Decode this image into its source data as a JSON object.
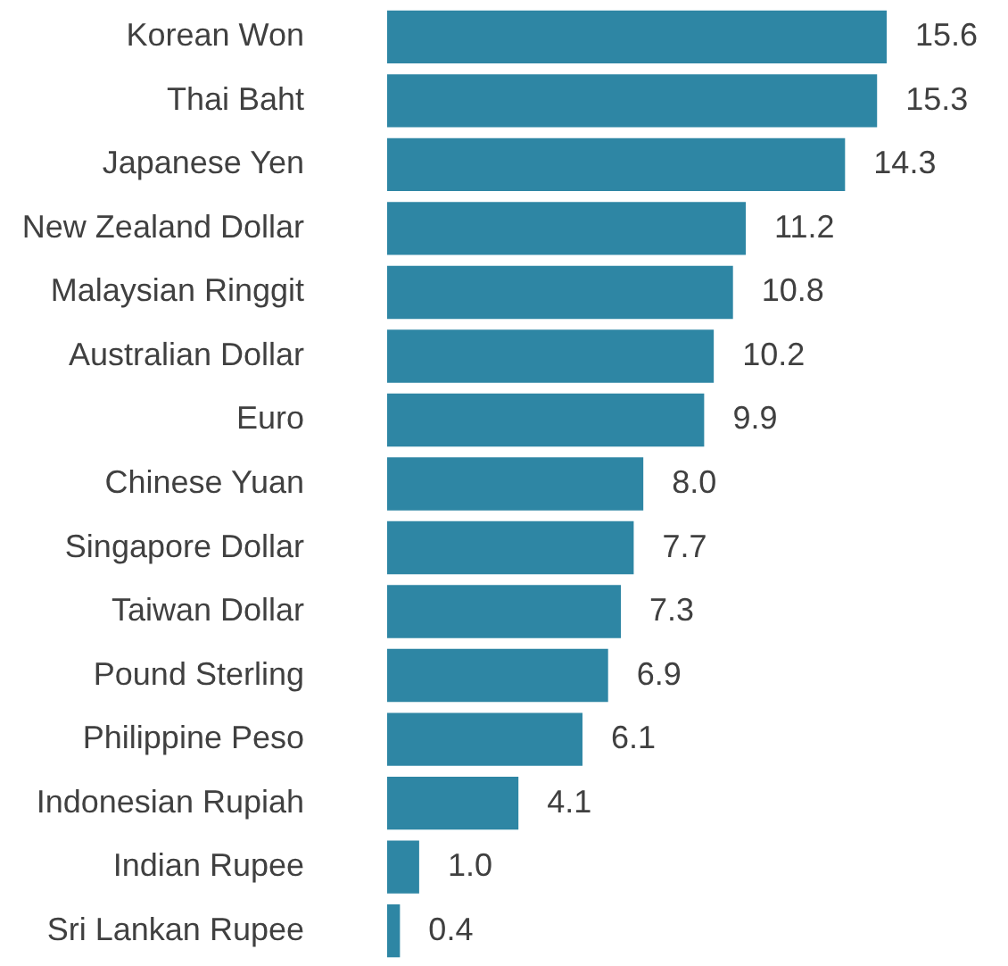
{
  "chart_data": {
    "type": "bar",
    "orientation": "horizontal",
    "categories": [
      "Korean Won",
      "Thai Baht",
      "Japanese Yen",
      "New Zealand Dollar",
      "Malaysian Ringgit",
      "Australian Dollar",
      "Euro",
      "Chinese Yuan",
      "Singapore Dollar",
      "Taiwan Dollar",
      "Pound Sterling",
      "Philippine Peso",
      "Indonesian Rupiah",
      "Indian Rupee",
      "Sri Lankan Rupee"
    ],
    "values": [
      15.6,
      15.3,
      14.3,
      11.2,
      10.8,
      10.2,
      9.9,
      8.0,
      7.7,
      7.3,
      6.9,
      6.1,
      4.1,
      1.0,
      0.4
    ],
    "value_labels": [
      "15.6",
      "15.3",
      "14.3",
      "11.2",
      "10.8",
      "10.2",
      "9.9",
      "8.0",
      "7.7",
      "7.3",
      "6.9",
      "6.1",
      "4.1",
      "1.0",
      "0.4"
    ],
    "color": "#2e86a4"
  }
}
